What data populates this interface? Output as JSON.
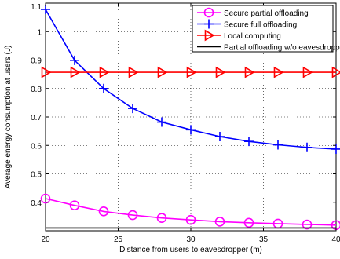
{
  "chart_data": {
    "type": "line",
    "title": "",
    "xlabel": "Distance from users to eavesdropper (m)",
    "ylabel": "Average energy consumption at users (J)",
    "xlim": [
      20,
      40
    ],
    "ylim": [
      0.3,
      1.1
    ],
    "xticks": [
      20,
      25,
      30,
      35,
      40
    ],
    "yticks": [
      0.4,
      0.5,
      0.6,
      0.7,
      0.8,
      0.9,
      1
    ],
    "ytick_top_label": "1.1",
    "grid": true,
    "legend_position": "top-right",
    "x": [
      20,
      22,
      24,
      26,
      28,
      30,
      32,
      34,
      36,
      38,
      40
    ],
    "series": [
      {
        "name": "Secure partial offloading",
        "color": "#ff00ff",
        "marker": "circle",
        "values": [
          0.413,
          0.389,
          0.368,
          0.355,
          0.345,
          0.338,
          0.332,
          0.328,
          0.325,
          0.322,
          0.32
        ]
      },
      {
        "name": "Secure full offloading",
        "color": "#0000ff",
        "marker": "plus",
        "values": [
          1.078,
          0.899,
          0.8,
          0.73,
          0.682,
          0.655,
          0.631,
          0.614,
          0.602,
          0.593,
          0.587
        ]
      },
      {
        "name": "Local computing",
        "color": "#ff0000",
        "marker": "triangle-right",
        "values": [
          0.857,
          0.857,
          0.857,
          0.857,
          0.857,
          0.857,
          0.857,
          0.857,
          0.857,
          0.857,
          0.857
        ]
      },
      {
        "name": "Partial offloading w/o eavesdropper",
        "color": "#000000",
        "marker": "none",
        "values": [
          0.31,
          0.31,
          0.31,
          0.31,
          0.31,
          0.31,
          0.31,
          0.31,
          0.31,
          0.31,
          0.31
        ]
      }
    ]
  }
}
